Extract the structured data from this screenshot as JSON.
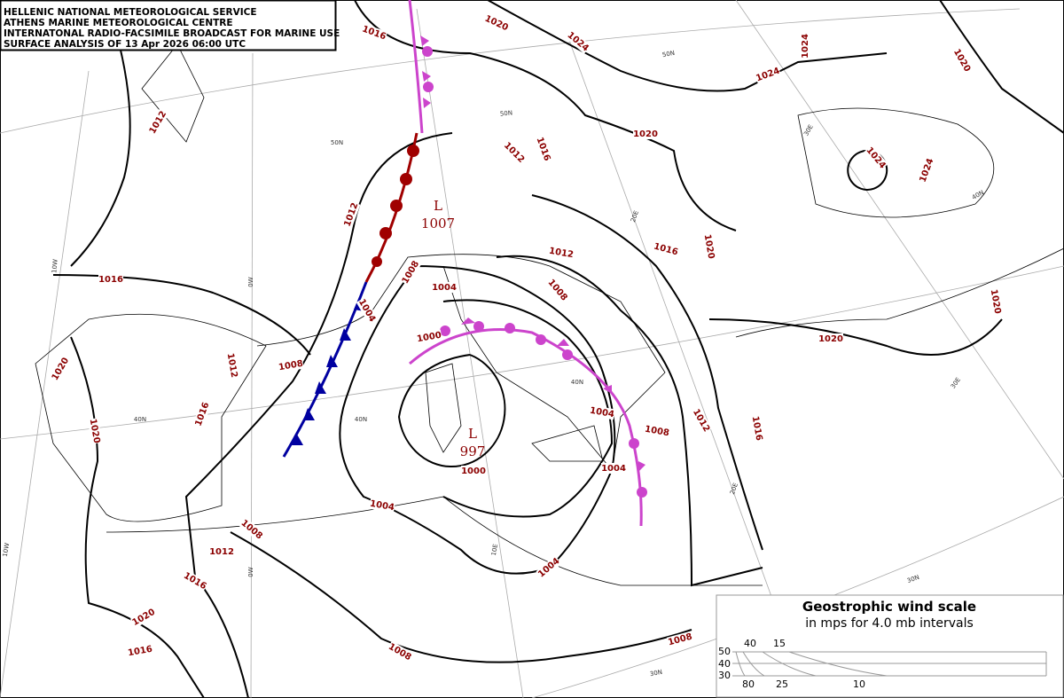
{
  "header": {
    "lines": [
      "HELLENIC NATIONAL METEOROLOGICAL SERVICE",
      "ATHENS MARINE METEOROLOGICAL CENTRE",
      "INTERNATONAL RADIO-FACSIMILE BROADCAST FOR MARINE USE",
      "SURFACE ANALYSIS OF 13 Apr 2026 06:00 UTC"
    ]
  },
  "pressure_centers": [
    {
      "letter": "L",
      "value": "1007"
    },
    {
      "letter": "L",
      "value": "997"
    }
  ],
  "isobar_labels": [
    "1016",
    "1020",
    "1024",
    "1024",
    "1024",
    "1020",
    "1012",
    "1020",
    "1016",
    "1012",
    "1024",
    "1024",
    "1012",
    "1016",
    "1020",
    "1012",
    "1016",
    "1008",
    "1004",
    "1008",
    "1004",
    "1020",
    "1000",
    "1020",
    "1012",
    "1008",
    "1020",
    "1016",
    "1004",
    "1008",
    "1012",
    "1016",
    "1020",
    "1004",
    "1000",
    "1004",
    "1008",
    "1012",
    "1004",
    "1016",
    "1020",
    "1008",
    "1016",
    "1008"
  ],
  "graticule_labels": [
    "50N",
    "50N",
    "50N",
    "40N",
    "40N",
    "40N",
    "40N",
    "30N",
    "30N",
    "10W",
    "0W",
    "0W",
    "10W",
    "10E",
    "20E",
    "20E",
    "30E",
    "30E"
  ],
  "wind_scale": {
    "title": "Geostrophic wind scale",
    "subtitle": "in mps for 4.0 mb intervals",
    "lat_labels": [
      "50",
      "40",
      "30"
    ],
    "top_labels": [
      "40",
      "15"
    ],
    "bottom_labels": [
      "80",
      "25",
      "10"
    ]
  }
}
